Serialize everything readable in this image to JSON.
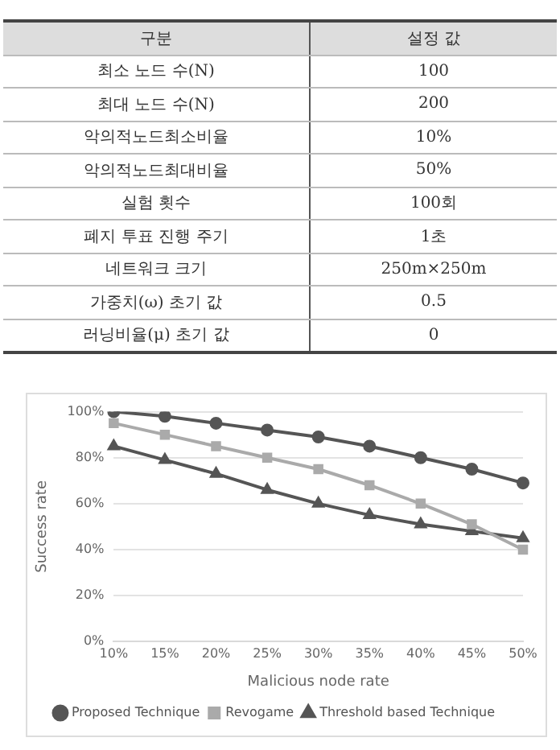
{
  "chart_data": [
    {
      "type": "other",
      "annotations": [
        "구분",
        "설정 값",
        "최소 노드 수(N)",
        "100",
        "최대 노드 수(N)",
        "200",
        "악의적노드최소비율",
        "10%",
        "악의적노드최대비율",
        "50%",
        "실험 횟수",
        "100회",
        "폐지 투표 진행 주기",
        "1초",
        "네트워크 크기",
        "250m×250m",
        "가중치(ω) 초기 값",
        "0.5",
        "러닝비율(μ) 초기 값",
        "0"
      ]
    },
    {
      "type": "line",
      "xlabel": "Malicious node rate",
      "ylabel": "Success rate",
      "categories": [
        "10%",
        "15%",
        "20%",
        "25%",
        "30%",
        "35%",
        "40%",
        "45%",
        "50%"
      ],
      "series": [
        {
          "name": "Proposed Technique",
          "color": "#555555",
          "marker": "circle",
          "values": [
            100,
            98,
            95,
            92,
            89,
            85,
            80,
            75,
            69
          ]
        },
        {
          "name": "Revogame",
          "color": "#aaaaaa",
          "marker": "square",
          "values": [
            95,
            90,
            85,
            80,
            75,
            68,
            60,
            51,
            40
          ]
        },
        {
          "name": "Threshold based Technique",
          "color": "#555555",
          "marker": "triangle",
          "values": [
            85,
            79,
            73,
            66,
            60,
            55,
            51,
            48,
            45
          ]
        }
      ],
      "ylim": [
        0,
        100
      ],
      "yticks": [
        {
          "value": 0,
          "label": "0%"
        },
        {
          "value": 20,
          "label": "20%"
        },
        {
          "value": 40,
          "label": "40%"
        },
        {
          "value": 60,
          "label": "60%"
        },
        {
          "value": 80,
          "label": "80%"
        },
        {
          "value": 100,
          "label": "100%"
        }
      ],
      "grid": "y",
      "legend": "bottom"
    }
  ]
}
